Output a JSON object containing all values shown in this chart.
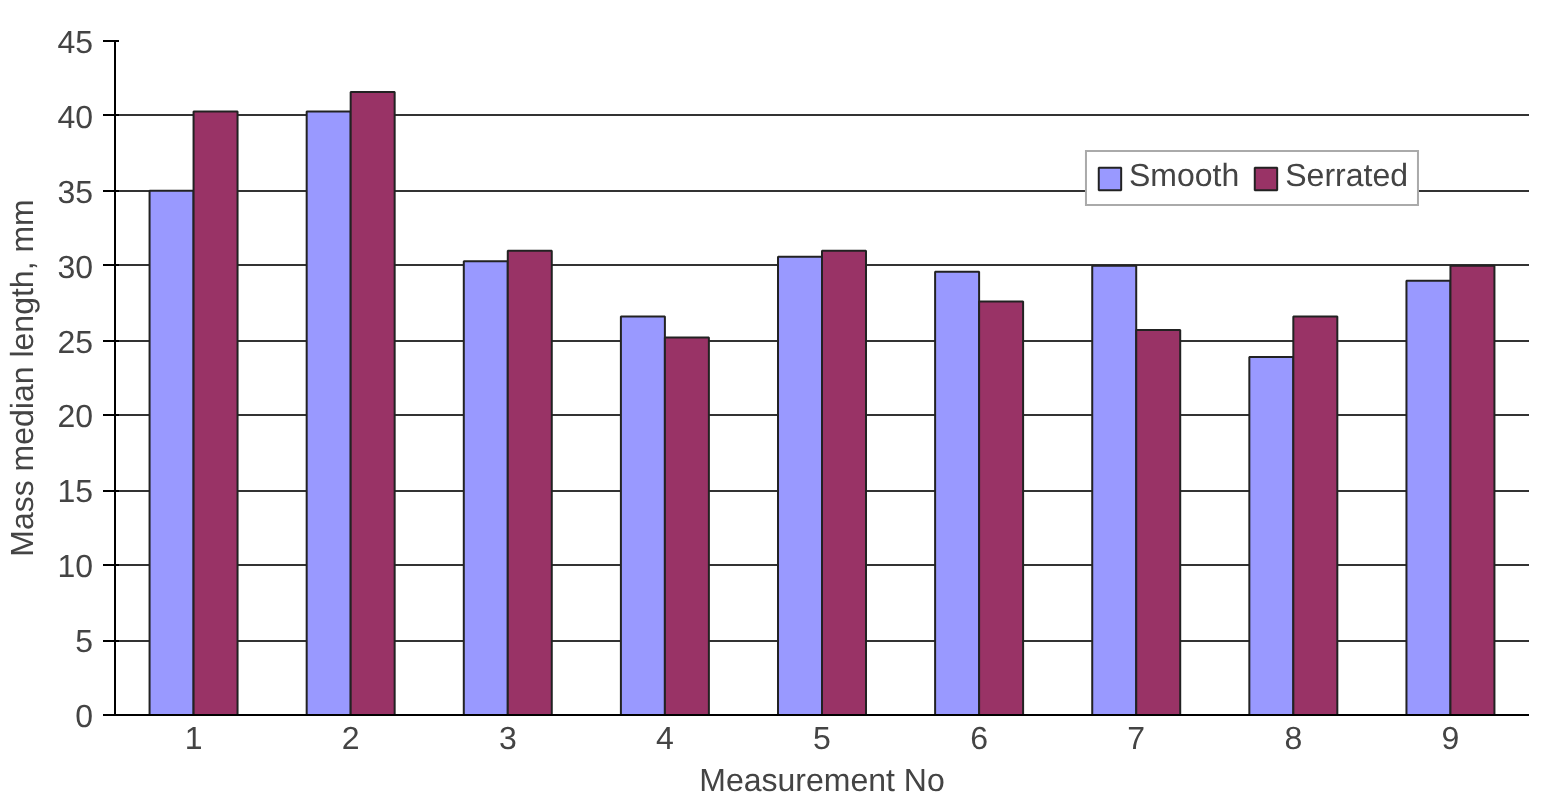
{
  "chart_data": {
    "type": "bar",
    "xlabel": "Measurement No",
    "ylabel": "Mass median length, mm",
    "categories": [
      "1",
      "2",
      "3",
      "4",
      "5",
      "6",
      "7",
      "8",
      "9"
    ],
    "series": [
      {
        "name": "Smooth",
        "color": "#9999ff",
        "values": [
          35.0,
          40.3,
          30.3,
          26.6,
          30.6,
          29.6,
          30.0,
          23.9,
          29.0
        ]
      },
      {
        "name": "Serrated",
        "color": "#993366",
        "values": [
          40.3,
          41.6,
          31.0,
          25.2,
          31.0,
          27.6,
          25.7,
          26.6,
          30.0
        ]
      }
    ],
    "ylim": [
      0,
      45
    ],
    "yticks": [
      0,
      5,
      10,
      15,
      20,
      25,
      30,
      35,
      40,
      45
    ],
    "grid": "y",
    "legend": "top right"
  }
}
